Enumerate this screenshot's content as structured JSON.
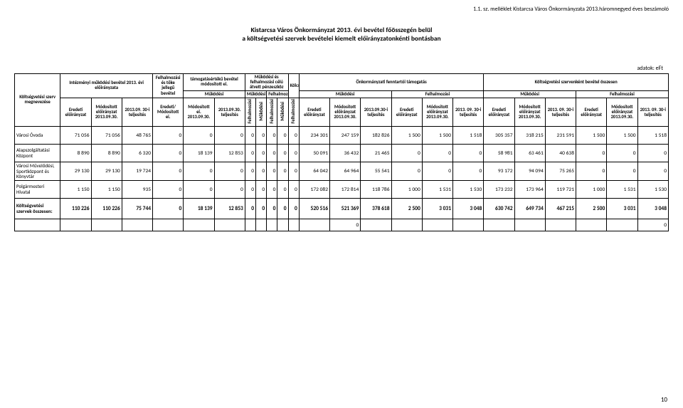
{
  "header": {
    "topnote": "1.1. sz. melléklet Kistarcsa Város Önkormányzata 2013.háromnegyed éves beszámoló",
    "title1": "Kistarcsa Város Önkormányzat 2013. évi bevétel főösszegén belül",
    "title2": "a költségvetési szervek bevételei kiemelt előirányzatonkénti bontásban",
    "units": "adatok: eFt",
    "pagenum": "10"
  },
  "colhead": {
    "rowlabel": "Költségvetési szerv megnevezése",
    "group_intezmeny": "Intézményi működési bevétel 2013. évi előirányzata",
    "group_felhalm": "Felhalmozási és tőke jellegű bevétel",
    "group_tamog": "támogatásértékű bevétel módosított ei.",
    "group_penz": "Működési és felhalmozási célú átvett pénzeszköz",
    "group_kolcson": "Kölcsön",
    "group_onkorm": "Önkormányzati fenntartói támogatás",
    "group_szervenkent": "Költségvetési szervenként bevétel összesen",
    "sub_mukodesi": "Működési",
    "sub_felhalmozasi": "Felhalmozási",
    "c_eredeti": "Eredeti előirányzat",
    "c_modositott": "Módosított előirányzat 2013.09.30.",
    "c_telj": "2013.09. 30-i teljesítés",
    "c_eredeti_mod": "Eredeti/ Módosított ei.",
    "c_modositott_ei": "Módosított ei. 2013.09.30.",
    "c_telj_2": "2013.09.30. teljesítés",
    "c_telj_3": "2013.09.30-i teljesítés",
    "c_telj_short": "2013. 09. 30-i teljesítés",
    "c_telj_short2": "2013. 09. 30-i teljesítés",
    "v_mukodesi": "Működési",
    "v_felhalmozasi": "Felhalmozási"
  },
  "rows": [
    {
      "label": "Városi Óvoda",
      "cells": [
        "71 056",
        "71 056",
        "48 765",
        "0",
        "0",
        "0",
        "0",
        "0",
        "0",
        "0",
        "0",
        "234 301",
        "247 159",
        "182 826",
        "1 500",
        "1 500",
        "1 518",
        "305 357",
        "318 215",
        "231 591",
        "1 500",
        "1 500",
        "1 518"
      ]
    },
    {
      "label": "Alapszolgáltatási Központ",
      "cells": [
        "8 890",
        "8 890",
        "6 320",
        "0",
        "18 139",
        "12 853",
        "0",
        "0",
        "0",
        "0",
        "0",
        "50 091",
        "36 432",
        "21 465",
        "0",
        "0",
        "0",
        "58 981",
        "63 461",
        "40 638",
        "0",
        "0",
        "0"
      ]
    },
    {
      "label": "Városi Művelődési, Sportközpont és Könyvtár",
      "cells": [
        "29 130",
        "29 130",
        "19 724",
        "0",
        "0",
        "0",
        "0",
        "0",
        "0",
        "0",
        "0",
        "64 042",
        "64 964",
        "55 541",
        "0",
        "0",
        "0",
        "93 172",
        "94 094",
        "75 265",
        "0",
        "0",
        "0"
      ]
    },
    {
      "label": "Polgármesteri Hivatal",
      "cells": [
        "1 150",
        "1 150",
        "935",
        "0",
        "0",
        "0",
        "0",
        "0",
        "0",
        "0",
        "0",
        "172 082",
        "172 814",
        "118 786",
        "1 000",
        "1 531",
        "1 530",
        "173 232",
        "173 964",
        "119 721",
        "1 000",
        "1 531",
        "1 530"
      ]
    }
  ],
  "totals": {
    "label": "Költségvetési szervek összesen:",
    "cells": [
      "110 226",
      "110 226",
      "75 744",
      "0",
      "18 139",
      "12 853",
      "0",
      "0",
      "0",
      "0",
      "0",
      "520 516",
      "521 369",
      "378 618",
      "2 500",
      "3 031",
      "3 048",
      "630 742",
      "649 734",
      "467 215",
      "2 500",
      "3 031",
      "3 048"
    ]
  },
  "blank_cells_left": "0",
  "blank_cells_right": "0"
}
